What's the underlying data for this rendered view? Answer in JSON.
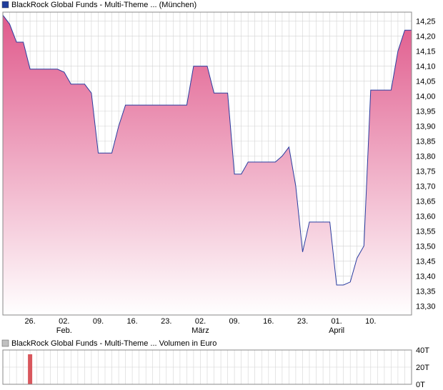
{
  "colors": {
    "price_line": "#2a3da0",
    "fill_top": "#e05a8c",
    "fill_bottom": "#ffffff",
    "grid": "#d4d4d4",
    "volume_bar": "#d9575d",
    "legend_price": "#1f3c9a",
    "legend_volume": "#c0c0c0"
  },
  "chart_data": [
    {
      "type": "area",
      "legend": "BlackRock Global Funds - Multi-Theme ... (München)",
      "ylim": [
        13.27,
        14.28
      ],
      "y_ticks": [
        "14,25",
        "14,20",
        "14,15",
        "14,10",
        "14,05",
        "14,00",
        "13,95",
        "13,90",
        "13,85",
        "13,80",
        "13,75",
        "13,70",
        "13,65",
        "13,60",
        "13,55",
        "13,50",
        "13,45",
        "13,40",
        "13,35",
        "13,30"
      ],
      "x_tick_labels": [
        {
          "day": "26.",
          "month": ""
        },
        {
          "day": "02.",
          "month": "Feb."
        },
        {
          "day": "09.",
          "month": ""
        },
        {
          "day": "16.",
          "month": ""
        },
        {
          "day": "23.",
          "month": ""
        },
        {
          "day": "02.",
          "month": "März"
        },
        {
          "day": "09.",
          "month": ""
        },
        {
          "day": "16.",
          "month": ""
        },
        {
          "day": "23.",
          "month": ""
        },
        {
          "day": "01.",
          "month": "April"
        },
        {
          "day": "10.",
          "month": ""
        }
      ],
      "x_tick_index": [
        4,
        9,
        14,
        19,
        24,
        29,
        34,
        39,
        44,
        49,
        54
      ],
      "values": [
        14.27,
        14.24,
        14.18,
        14.18,
        14.09,
        14.09,
        14.09,
        14.09,
        14.09,
        14.08,
        14.04,
        14.04,
        14.04,
        14.01,
        13.81,
        13.81,
        13.81,
        13.9,
        13.97,
        13.97,
        13.97,
        13.97,
        13.97,
        13.97,
        13.97,
        13.97,
        13.97,
        13.97,
        14.1,
        14.1,
        14.1,
        14.01,
        14.01,
        14.01,
        13.74,
        13.74,
        13.78,
        13.78,
        13.78,
        13.78,
        13.78,
        13.8,
        13.83,
        13.7,
        13.48,
        13.58,
        13.58,
        13.58,
        13.58,
        13.37,
        13.37,
        13.38,
        13.46,
        13.5,
        14.02,
        14.02,
        14.02,
        14.02,
        14.15,
        14.22,
        14.22
      ],
      "grid": true
    },
    {
      "type": "bar",
      "legend": "BlackRock Global Funds - Multi-Theme ... Volumen in Euro",
      "ylim": [
        0,
        40
      ],
      "y_ticks": [
        "40T",
        "20T",
        "0T"
      ],
      "y_tick_values": [
        40,
        20,
        0
      ],
      "values": [
        0,
        0,
        0,
        0,
        35,
        0,
        0,
        0,
        0,
        0,
        0,
        0,
        0,
        0,
        0,
        0,
        0,
        0,
        0,
        0,
        0,
        0,
        0,
        0,
        0,
        0,
        0,
        0,
        0,
        0,
        0,
        0,
        0,
        0,
        0,
        0,
        0,
        0,
        0,
        0,
        0,
        0,
        0,
        0,
        0,
        0,
        0,
        0,
        0,
        0,
        0,
        0,
        0,
        0,
        0,
        0,
        0,
        0,
        0,
        0,
        0
      ],
      "grid": true
    }
  ]
}
